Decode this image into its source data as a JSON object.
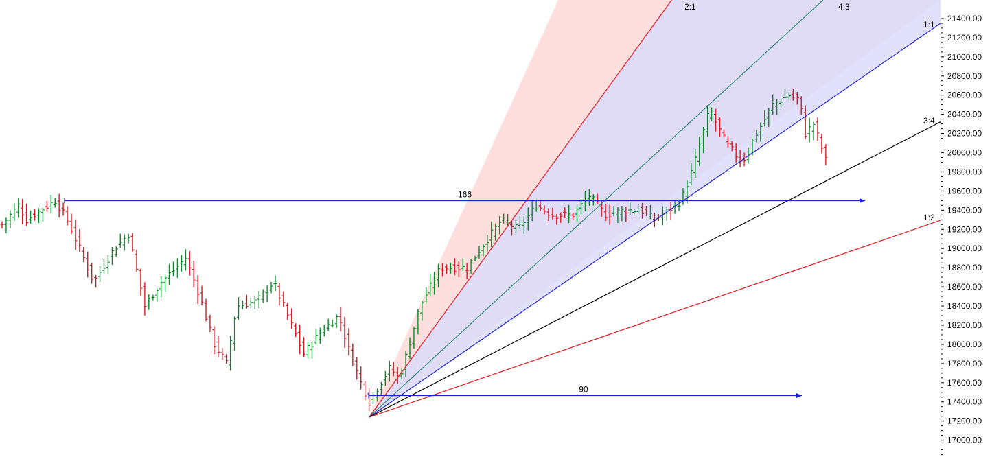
{
  "chart_data": {
    "type": "bar",
    "subtype": "ohlc",
    "title": "",
    "xlabel": "",
    "ylabel": "",
    "ylim": [
      16860,
      21530
    ],
    "grid": false,
    "up_color": "#0b8a2a",
    "down_color": "#e0141e",
    "y_ticks": [
      "21400.00",
      "21200.00",
      "21000.00",
      "20800.00",
      "20600.00",
      "20400.00",
      "20200.00",
      "20000.00",
      "19800.00",
      "19600.00",
      "19400.00",
      "19200.00",
      "19000.00",
      "18800.00",
      "18600.00",
      "18400.00",
      "18200.00",
      "18000.00",
      "17800.00",
      "17600.00",
      "17400.00",
      "17200.00",
      "17000.00"
    ],
    "y_tick_values": [
      21400,
      21200,
      21000,
      20800,
      20600,
      20400,
      20200,
      20000,
      19800,
      19600,
      19400,
      19200,
      19000,
      18800,
      18600,
      18400,
      18200,
      18000,
      17800,
      17600,
      17400,
      17200,
      17000
    ],
    "gann_fan": {
      "origin_bar": 180,
      "origin_price": 17240,
      "lines": [
        {
          "label": "2:1",
          "color": "#e0141e"
        },
        {
          "label": "4:3",
          "color": "#2e8b7a"
        },
        {
          "label": "1:1",
          "color": "#1e22d6"
        },
        {
          "label": "3:4",
          "color": "#000000"
        },
        {
          "label": "1:2",
          "color": "#e0141e"
        }
      ]
    },
    "measurements": [
      {
        "label": "166",
        "color": "#1e22d6"
      },
      {
        "label": "90",
        "color": "#1e22d6"
      }
    ]
  }
}
